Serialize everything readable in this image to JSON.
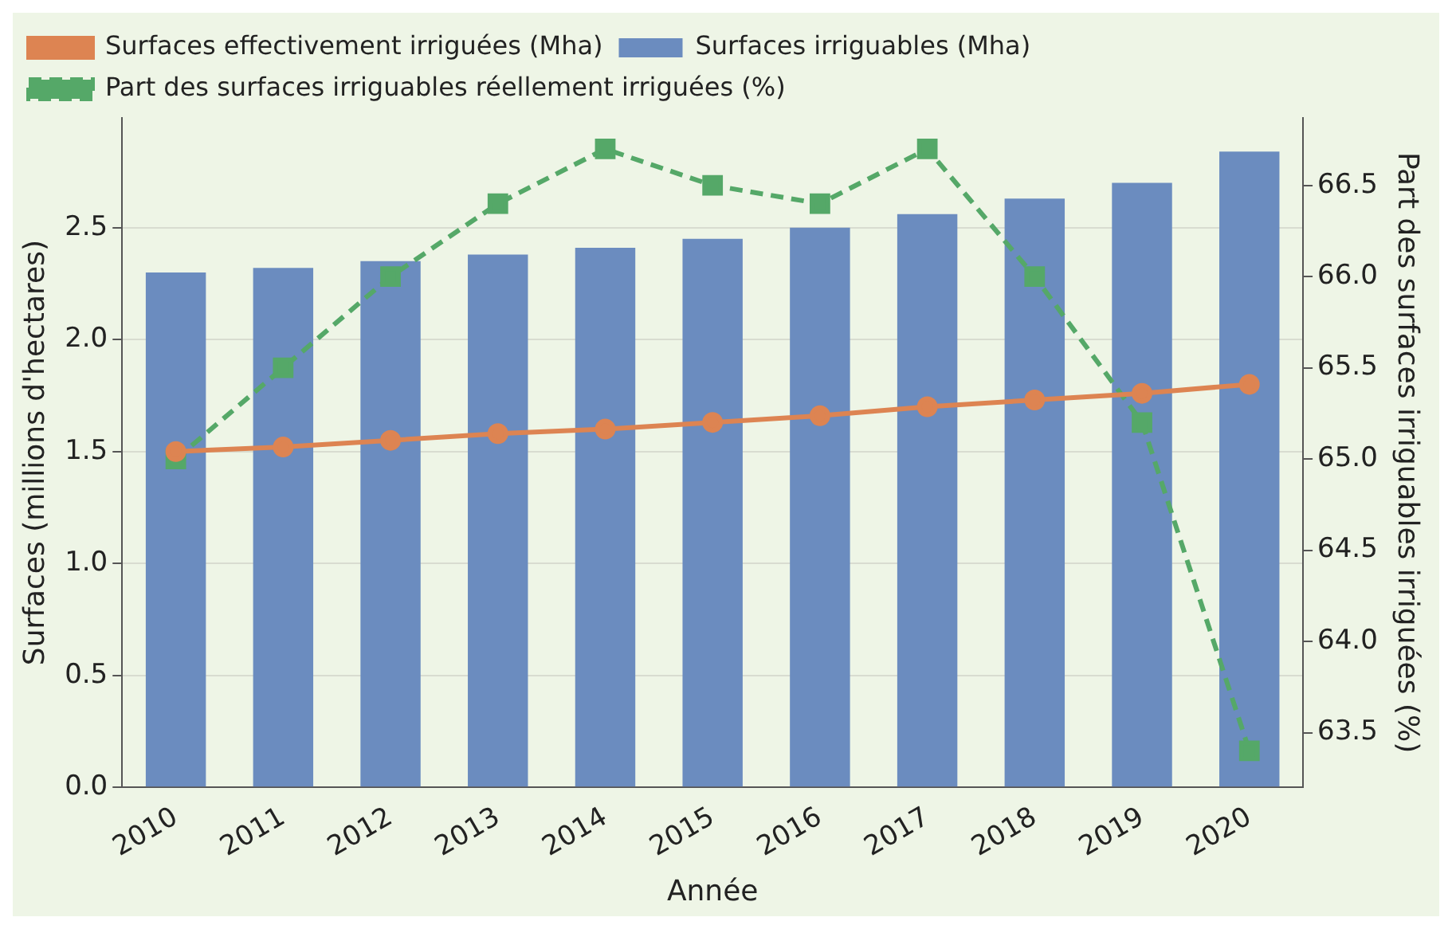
{
  "chart_data": {
    "type": "bar",
    "xlabel": "Année",
    "ylabel": "Surfaces (millions d'hectares)",
    "y2label": "Part des surfaces irriguables irriguées (%)",
    "categories": [
      "2010",
      "2011",
      "2012",
      "2013",
      "2014",
      "2015",
      "2016",
      "2017",
      "2018",
      "2019",
      "2020"
    ],
    "series": [
      {
        "name": "Surfaces effectivement irriguées (Mha)",
        "type": "line",
        "color": "#dd8452",
        "marker": "circle",
        "line_style": "solid",
        "values": [
          1.5,
          1.52,
          1.55,
          1.58,
          1.6,
          1.63,
          1.66,
          1.7,
          1.73,
          1.76,
          1.8
        ]
      },
      {
        "name": "Surfaces irriguables (Mha)",
        "color": "#6b8cbf",
        "values": [
          2.3,
          2.32,
          2.35,
          2.38,
          2.41,
          2.45,
          2.5,
          2.56,
          2.63,
          2.7,
          2.84
        ]
      },
      {
        "name": "Part des surfaces irriguables réellement irriguées (%)",
        "type": "line",
        "axis": "y2",
        "color": "#55a868",
        "marker": "square",
        "line_style": "dashed",
        "values": [
          65.0,
          65.5,
          66.0,
          66.4,
          66.7,
          66.5,
          66.4,
          66.7,
          66.0,
          65.2,
          63.4
        ]
      }
    ],
    "ylim": [
      0,
      2.99
    ],
    "yticks": [
      {
        "value": 0,
        "label": "0.0"
      },
      0.5,
      {
        "value": 1,
        "label": "1.0"
      },
      1.5,
      {
        "value": 2,
        "label": "2.0"
      },
      2.5
    ],
    "y2lim": [
      63.2,
      66.87
    ],
    "y2ticks": [
      63.5,
      {
        "value": 64,
        "label": "64.0"
      },
      64.5,
      {
        "value": 65,
        "label": "65.0"
      },
      65.5,
      {
        "value": 66,
        "label": "66.0"
      },
      66.5
    ],
    "grid": "y",
    "legend": "top"
  }
}
